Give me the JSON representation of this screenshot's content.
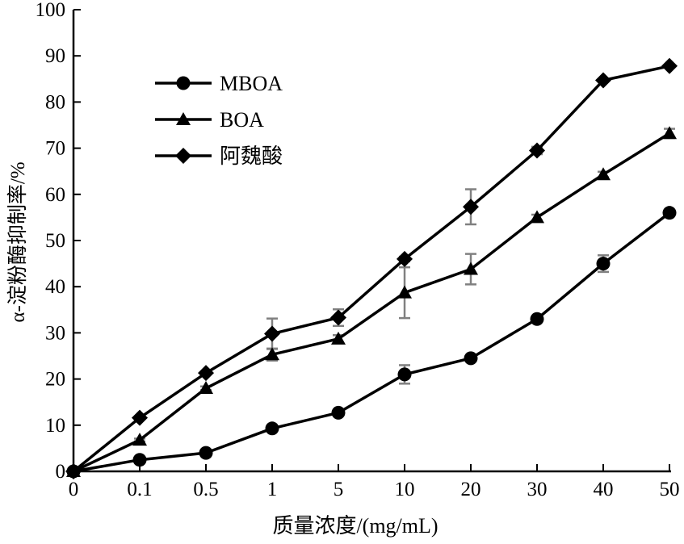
{
  "chart_data": {
    "type": "line",
    "title": "",
    "xlabel": "质量浓度/(mg/mL)",
    "ylabel": "α-淀粉酶抑制率/%",
    "categories": [
      "0",
      "0.1",
      "0.5",
      "1",
      "5",
      "10",
      "20",
      "30",
      "40",
      "50"
    ],
    "yticks": [
      0,
      10,
      20,
      30,
      40,
      50,
      60,
      70,
      80,
      90,
      100
    ],
    "ylim": [
      0,
      100
    ],
    "grid": false,
    "legend_position": "top-left",
    "series": [
      {
        "name": "MBOA",
        "marker": "circle",
        "values": [
          0,
          2.5,
          4,
          9.3,
          12.7,
          21,
          24.5,
          33,
          45,
          56
        ],
        "errors": [
          0,
          0.3,
          0.3,
          0.4,
          0.4,
          2,
          0.5,
          0.5,
          1.8,
          0.5
        ]
      },
      {
        "name": "BOA",
        "marker": "triangle",
        "values": [
          0,
          6.8,
          18,
          25.3,
          28.7,
          38.7,
          43.8,
          55,
          64.3,
          73.2
        ],
        "errors": [
          0,
          0.3,
          0.4,
          1.3,
          0.8,
          5.5,
          3.3,
          0.6,
          0.6,
          1.0
        ]
      },
      {
        "name": "阿魏酸",
        "marker": "diamond",
        "values": [
          0,
          11.6,
          21.3,
          29.8,
          33.3,
          46,
          57.3,
          69.5,
          84.7,
          87.8
        ],
        "errors": [
          0,
          0.3,
          0.3,
          3.3,
          1.8,
          0.5,
          3.8,
          0.8,
          0.3,
          0.3
        ]
      }
    ],
    "colors": {
      "line": "#000000",
      "errorbar": "#808080"
    }
  }
}
